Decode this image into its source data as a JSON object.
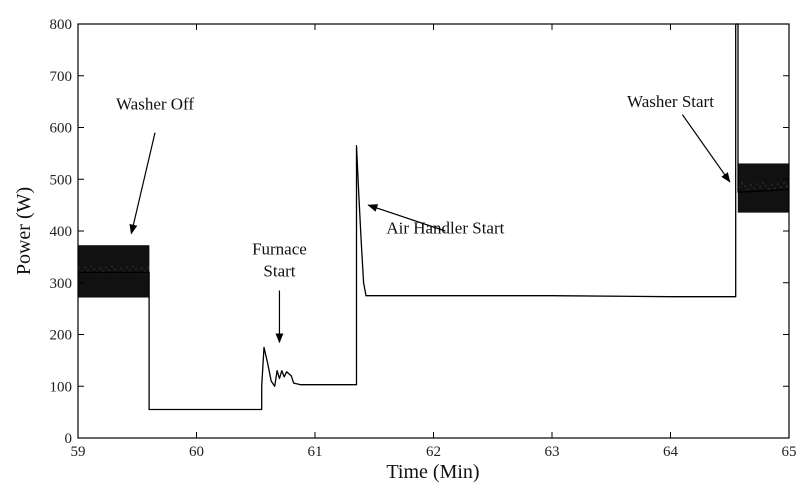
{
  "chart_data": {
    "type": "line",
    "title": "",
    "xlabel": "Time (Min)",
    "ylabel": "Power (W)",
    "xlim": [
      59,
      65
    ],
    "ylim": [
      0,
      800
    ],
    "grid": false,
    "x_ticks": [
      59,
      60,
      61,
      62,
      63,
      64,
      65
    ],
    "y_ticks": [
      0,
      100,
      200,
      300,
      400,
      500,
      600,
      700,
      800
    ],
    "series": [
      {
        "points": [
          [
            59.0,
            320
          ],
          [
            59.6,
            320
          ],
          [
            59.6,
            55
          ],
          [
            60.55,
            55
          ],
          [
            60.55,
            100
          ],
          [
            60.57,
            175
          ],
          [
            60.6,
            145
          ],
          [
            60.63,
            110
          ],
          [
            60.66,
            100
          ],
          [
            60.68,
            130
          ],
          [
            60.7,
            115
          ],
          [
            60.72,
            130
          ],
          [
            60.74,
            118
          ],
          [
            60.76,
            128
          ],
          [
            60.8,
            120
          ],
          [
            60.82,
            106
          ],
          [
            60.88,
            103
          ],
          [
            61.0,
            103
          ],
          [
            61.15,
            103
          ],
          [
            61.35,
            103
          ],
          [
            61.35,
            565
          ],
          [
            61.37,
            470
          ],
          [
            61.39,
            380
          ],
          [
            61.41,
            300
          ],
          [
            61.43,
            275
          ],
          [
            61.6,
            275
          ],
          [
            62.0,
            275
          ],
          [
            63.0,
            275
          ],
          [
            64.0,
            273
          ],
          [
            64.55,
            273
          ],
          [
            64.55,
            800
          ],
          [
            64.57,
            800
          ],
          [
            64.57,
            475
          ],
          [
            65.0,
            480
          ]
        ]
      }
    ],
    "noise_bands": [
      {
        "x_start": 59.0,
        "x_end": 59.6,
        "y_low": 272,
        "y_high": 372
      },
      {
        "x_start": 64.57,
        "x_end": 65.0,
        "y_low": 436,
        "y_high": 530
      }
    ],
    "annotations": [
      {
        "text": "Washer Off",
        "lines": [
          "Washer Off"
        ],
        "x": 59.65,
        "y": 635,
        "arrow_to": [
          59.45,
          395
        ],
        "arrow_from": [
          59.65,
          590
        ]
      },
      {
        "text": "Furnace Start",
        "lines": [
          "Furnace",
          "Start"
        ],
        "x": 60.7,
        "y": 355,
        "arrow_to": [
          60.7,
          185
        ],
        "arrow_from": [
          60.7,
          285
        ]
      },
      {
        "text": "Air Handler Start",
        "lines": [
          "Air Handler Start"
        ],
        "x": 62.1,
        "y": 395,
        "arrow_to": [
          61.45,
          450
        ],
        "arrow_from": [
          62.1,
          400
        ]
      },
      {
        "text": "Washer Start",
        "lines": [
          "Washer Start"
        ],
        "x": 64.0,
        "y": 640,
        "arrow_to": [
          64.5,
          495
        ],
        "arrow_from": [
          64.1,
          625
        ]
      }
    ]
  }
}
